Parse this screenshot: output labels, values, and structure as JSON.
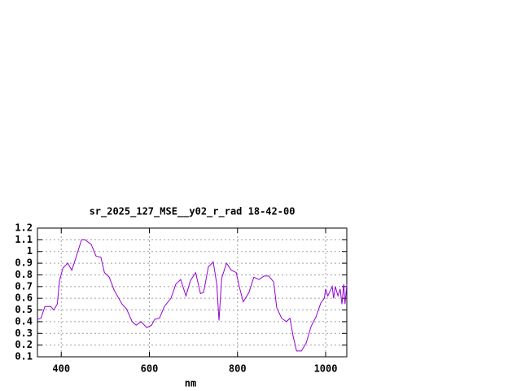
{
  "chart_data": {
    "type": "line",
    "title": "sr_2025_127_MSE__y02_r_rad 18-42-00",
    "x_label": "nm",
    "x": [
      346,
      354,
      363,
      376,
      383,
      391,
      396,
      404,
      415,
      424,
      431,
      446,
      454,
      468,
      479,
      490,
      498,
      509,
      520,
      538,
      548,
      561,
      570,
      581,
      594,
      605,
      612,
      623,
      634,
      649,
      660,
      671,
      683,
      693,
      705,
      716,
      723,
      734,
      745,
      753,
      758,
      764,
      775,
      786,
      797,
      804,
      813,
      826,
      837,
      849,
      860,
      871,
      882,
      889,
      900,
      911,
      919,
      926,
      934,
      945,
      956,
      967,
      978,
      989,
      997,
      1000,
      1005,
      1015,
      1018,
      1022,
      1028,
      1033,
      1037,
      1041,
      1044,
      1048
    ],
    "series": [
      {
        "color": "#9400d3",
        "values": [
          0.42,
          0.43,
          0.53,
          0.53,
          0.5,
          0.55,
          0.75,
          0.86,
          0.9,
          0.84,
          0.92,
          1.1,
          1.1,
          1.06,
          0.96,
          0.95,
          0.82,
          0.78,
          0.67,
          0.55,
          0.51,
          0.4,
          0.37,
          0.4,
          0.35,
          0.37,
          0.42,
          0.43,
          0.53,
          0.6,
          0.72,
          0.76,
          0.62,
          0.75,
          0.82,
          0.64,
          0.65,
          0.87,
          0.91,
          0.72,
          0.41,
          0.77,
          0.9,
          0.84,
          0.82,
          0.7,
          0.57,
          0.65,
          0.78,
          0.76,
          0.79,
          0.79,
          0.74,
          0.52,
          0.43,
          0.4,
          0.43,
          0.28,
          0.15,
          0.15,
          0.22,
          0.36,
          0.44,
          0.56,
          0.6,
          0.68,
          0.62,
          0.7,
          0.6,
          0.7,
          0.62,
          0.68,
          0.55,
          0.72,
          0.55,
          0.72
        ]
      }
    ],
    "xlim": [
      346,
      1048
    ],
    "ylim": [
      0.1,
      1.2
    ],
    "xticks": [
      400,
      600,
      800,
      1000
    ],
    "yticks": [
      0.1,
      0.2,
      0.3,
      0.4,
      0.5,
      0.6,
      0.7,
      0.8,
      0.9,
      1,
      1.1,
      1.2
    ],
    "grid": true
  }
}
